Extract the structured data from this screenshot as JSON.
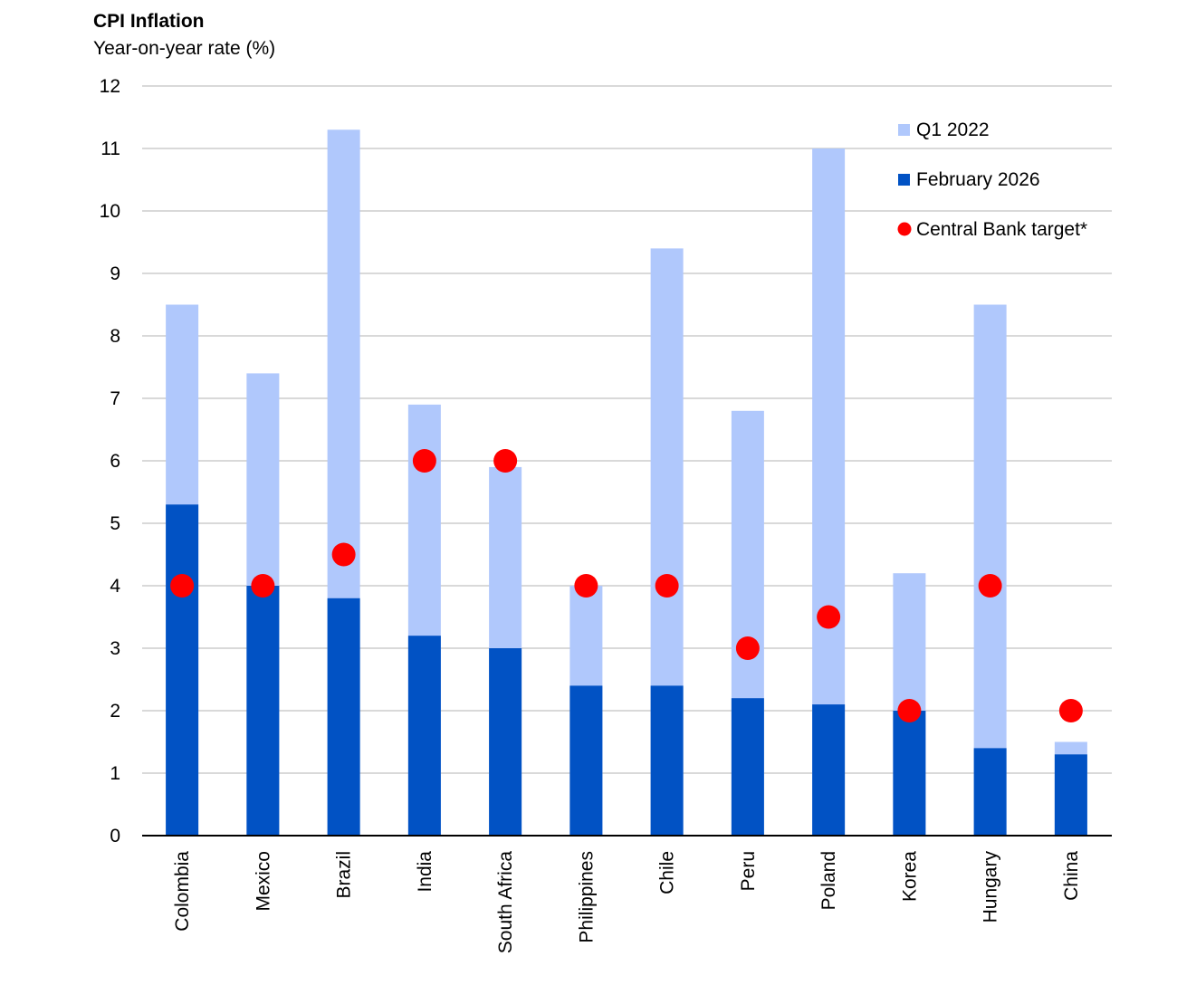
{
  "chart_data": {
    "type": "bar",
    "title": "CPI Inflation",
    "subtitle": "Year-on-year rate (%)",
    "xlabel": "",
    "ylabel": "",
    "ylim": [
      0,
      12
    ],
    "yticks": [
      0,
      1,
      2,
      3,
      4,
      5,
      6,
      7,
      8,
      9,
      10,
      11,
      12
    ],
    "grid": true,
    "legend_position": "top-right",
    "categories": [
      "Colombia",
      "Mexico",
      "Brazil",
      "India",
      "South Africa",
      "Philippines",
      "Chile",
      "Peru",
      "Poland",
      "Korea",
      "Hungary",
      "China"
    ],
    "series": [
      {
        "name": "Q1 2022",
        "kind": "bar",
        "color": "#b0c8fc",
        "values": [
          8.5,
          7.4,
          11.3,
          6.9,
          5.9,
          4.0,
          9.4,
          6.8,
          11.0,
          4.2,
          8.5,
          1.5
        ]
      },
      {
        "name": "February 2026",
        "kind": "bar",
        "color": "#0152c4",
        "values": [
          5.3,
          4.0,
          3.8,
          3.2,
          3.0,
          2.4,
          2.4,
          2.2,
          2.1,
          2.0,
          1.4,
          1.3
        ]
      },
      {
        "name": "Central Bank target*",
        "kind": "marker",
        "color": "#ff0000",
        "values": [
          4,
          4,
          4.5,
          6,
          6,
          4,
          4,
          3,
          3.5,
          2,
          4,
          2
        ]
      }
    ]
  }
}
